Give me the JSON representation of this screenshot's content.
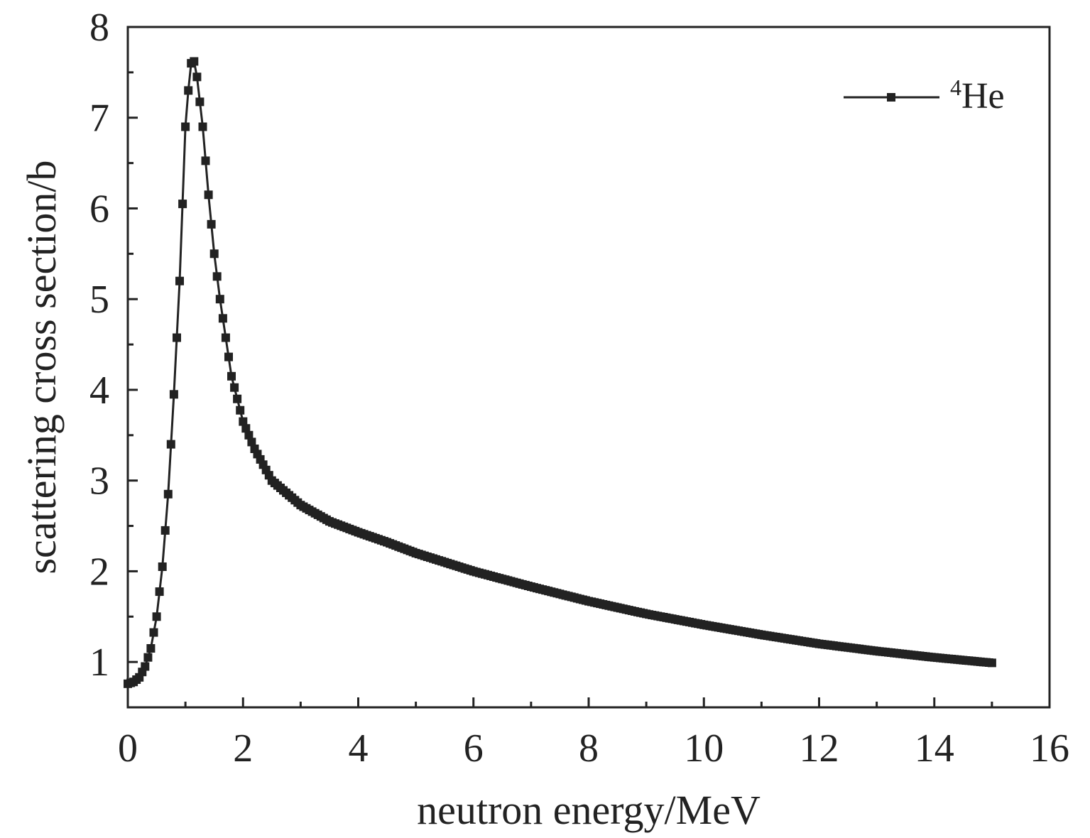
{
  "chart_data": {
    "type": "line",
    "xlabel": "neutron energy/MeV",
    "ylabel": "scattering cross section/b",
    "xlim": [
      0,
      16
    ],
    "ylim": [
      0.5,
      8
    ],
    "xticks": [
      0,
      2,
      4,
      6,
      8,
      10,
      12,
      14,
      16
    ],
    "xtick_labels": [
      "0",
      "2",
      "4",
      "6",
      "8",
      "10",
      "12",
      "14",
      "16"
    ],
    "yticks": [
      1,
      2,
      3,
      4,
      5,
      6,
      7,
      8
    ],
    "ytick_labels": [
      "1",
      "2",
      "3",
      "4",
      "5",
      "6",
      "7",
      "8"
    ],
    "minor_ticks": true,
    "grid": false,
    "legend_position": "top-right",
    "marker": "square",
    "color": "#222222",
    "series": [
      {
        "name": "He",
        "name_superscript": "4",
        "x": [
          0,
          0.1,
          0.2,
          0.3,
          0.4,
          0.5,
          0.6,
          0.7,
          0.8,
          0.9,
          1.0,
          1.05,
          1.1,
          1.15,
          1.2,
          1.3,
          1.4,
          1.5,
          1.6,
          1.8,
          2.0,
          2.2,
          2.5,
          3.0,
          3.5,
          4.0,
          4.5,
          5.0,
          6.0,
          7.0,
          8.0,
          9.0,
          10.0,
          11.0,
          12.0,
          13.0,
          14.0,
          15.0
        ],
        "y": [
          0.76,
          0.78,
          0.83,
          0.95,
          1.15,
          1.5,
          2.05,
          2.85,
          3.95,
          5.2,
          6.9,
          7.3,
          7.6,
          7.62,
          7.45,
          6.9,
          6.15,
          5.5,
          5.0,
          4.15,
          3.65,
          3.35,
          3.0,
          2.73,
          2.55,
          2.43,
          2.32,
          2.2,
          2.0,
          1.83,
          1.67,
          1.53,
          1.41,
          1.3,
          1.2,
          1.12,
          1.05,
          0.99
        ]
      }
    ]
  }
}
